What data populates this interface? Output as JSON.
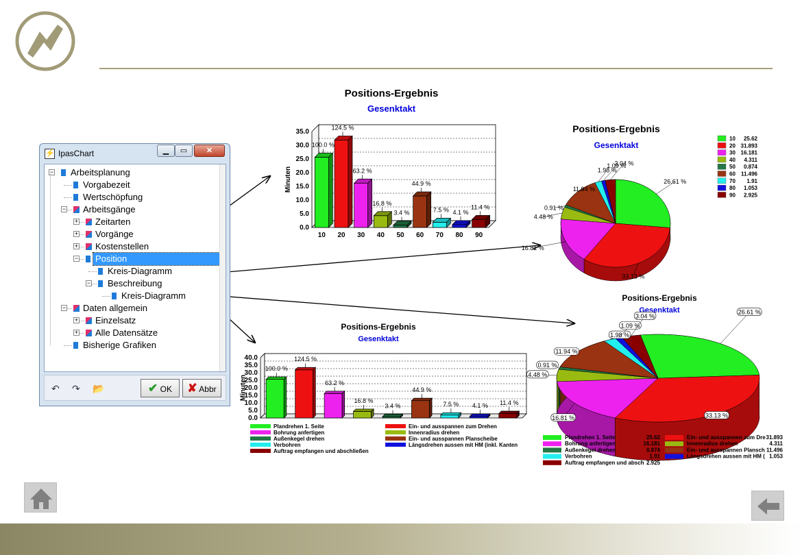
{
  "window": {
    "title": "IpasChart",
    "ok_label": "OK",
    "abbr_label": "Abbr",
    "tree": [
      {
        "label": "Arbeitsplanung",
        "level": 0
      },
      {
        "label": "Vorgabezeit",
        "level": 1
      },
      {
        "label": "Wertschöpfung",
        "level": 1
      },
      {
        "label": "Arbeitsgänge",
        "level": 1
      },
      {
        "label": "Zeitarten",
        "level": 2
      },
      {
        "label": "Vorgänge",
        "level": 2
      },
      {
        "label": "Kostenstellen",
        "level": 2
      },
      {
        "label": "Position",
        "level": 2,
        "selected": true
      },
      {
        "label": "Kreis-Diagramm",
        "level": 3
      },
      {
        "label": "Beschreibung",
        "level": 3
      },
      {
        "label": "Kreis-Diagramm",
        "level": 4
      },
      {
        "label": "Daten allgemein",
        "level": 1
      },
      {
        "label": "Einzelsatz",
        "level": 2
      },
      {
        "label": "Alle Datensätze",
        "level": 2
      },
      {
        "label": "Bisherige Grafiken",
        "level": 1
      }
    ]
  },
  "colors": {
    "accent_line": "#a59f7a",
    "selection": "#3399ff",
    "series": [
      "#22ee22",
      "#ee1111",
      "#ee22ee",
      "#99bb11",
      "#227744",
      "#993311",
      "#22eeee",
      "#1111dd",
      "#880000"
    ]
  },
  "icons": [
    "logo-icon",
    "home-icon",
    "back-arrow-icon",
    "undo-icon",
    "redo-icon",
    "open-folder-icon",
    "check-icon",
    "x-icon"
  ],
  "chart_data": [
    {
      "type": "bar",
      "title": "Positions-Ergebnis",
      "subtitle": "Gesenktakt",
      "ylabel": "Minuten",
      "categories": [
        "10",
        "20",
        "30",
        "40",
        "50",
        "60",
        "70",
        "80",
        "90"
      ],
      "values": [
        25.62,
        31.893,
        16.181,
        4.311,
        0.874,
        11.496,
        1.91,
        1.053,
        2.925
      ],
      "data_labels": [
        "100.0 %",
        "124.5 %",
        "63.2 %",
        "16.8 %",
        "3.4 %",
        "44.9 %",
        "7.5 %",
        "4.1 %",
        "11.4 %"
      ],
      "yticks": [
        "0.0",
        "5.0",
        "10.0",
        "15.0",
        "20.0",
        "25.0",
        "30.0",
        "35.0"
      ],
      "ylim": [
        0,
        35
      ]
    },
    {
      "type": "pie",
      "title": "Positions-Ergebnis",
      "subtitle": "Gesenktakt",
      "categories": [
        "10",
        "20",
        "30",
        "40",
        "50",
        "60",
        "70",
        "80",
        "90"
      ],
      "values": [
        25.62,
        31.893,
        16.181,
        4.311,
        0.874,
        11.496,
        1.91,
        1.053,
        2.925
      ],
      "value_labels": [
        "25.62",
        "31.893",
        "16.181",
        "4.311",
        "0.874",
        "11.496",
        "1.91",
        "1.053",
        "2.925"
      ],
      "slice_labels": [
        "26.61 %",
        "33.13 %",
        "16.81 %",
        "4.48 %",
        "0.91 %",
        "11.94 %",
        "1.98 %",
        "1.09 %",
        "3.04 %"
      ],
      "legend": "right"
    },
    {
      "type": "bar",
      "title": "Positions-Ergebnis",
      "subtitle": "Gesenktakt",
      "ylabel": "Minuten",
      "categories": [
        "Plandrehen 1. Seite",
        "Ein- und ausspannen zum Drehen",
        "Bohrung anfertigen",
        "Innenradius drehen",
        "Außenkegel drehen",
        "Ein- und ausspannen Planscheibe",
        "Verbohren",
        "Längsdrehen aussen mit HM (inkl. Kanten",
        "Auftrag empfangen und abschließen"
      ],
      "values": [
        25.62,
        31.893,
        16.181,
        4.311,
        0.874,
        11.496,
        1.91,
        1.053,
        2.925
      ],
      "data_labels": [
        "100.0 %",
        "124.5 %",
        "63.2 %",
        "16.8 %",
        "3.4 %",
        "44.9 %",
        "7.5 %",
        "4.1 %",
        "11.4 %"
      ],
      "yticks": [
        "0.0",
        "5.0",
        "10.0",
        "15.0",
        "20.0",
        "25.0",
        "30.0",
        "35.0",
        "40.0"
      ],
      "ylim": [
        0,
        40
      ],
      "legend": "bottom"
    },
    {
      "type": "pie",
      "title": "Positions-Ergebnis",
      "subtitle": "Gesenktakt",
      "categories": [
        "Plandrehen 1. Seite",
        "Ein- und ausspannen zum Dre",
        "Bohrung anfertigen",
        "Innenradius drehen",
        "Außenkegel drehen",
        "Ein- und ausspannen Plansch",
        "Verbohren",
        "Längsdrehen aussen mit HM (",
        "Auftrag empfangen und absch"
      ],
      "values": [
        25.62,
        31.893,
        16.181,
        4.311,
        0.874,
        11.496,
        1.91,
        1.053,
        2.925
      ],
      "value_labels": [
        "25.62",
        "31.893",
        "16.181",
        "4.311",
        "0.874",
        "11.496",
        "1.91",
        "1.053",
        "2.925"
      ],
      "slice_labels": [
        "26.61 %",
        "33.13 %",
        "16.81 %",
        "4.48 %",
        "0.91 %",
        "11.94 %",
        "1.98 %",
        "1.09 %",
        "3.04 %"
      ],
      "legend": "bottom"
    }
  ]
}
